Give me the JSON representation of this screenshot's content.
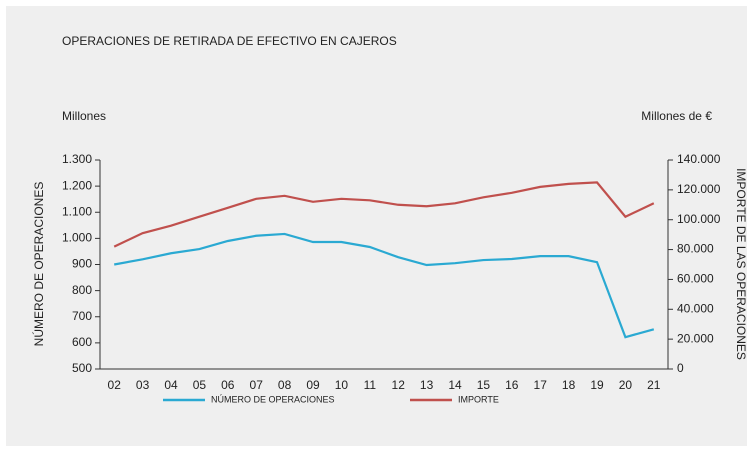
{
  "chart_data": {
    "type": "line",
    "title": "OPERACIONES DE RETIRADA DE EFECTIVO EN CAJEROS",
    "y_unit": "Millones",
    "y2_unit": "Millones de €",
    "ylabel": "NÚMERO DE OPERACIONES",
    "y2label": "IMPORTE DE LAS OPERACIONES",
    "categories": [
      "02",
      "03",
      "04",
      "05",
      "06",
      "07",
      "08",
      "09",
      "10",
      "11",
      "12",
      "13",
      "14",
      "15",
      "16",
      "17",
      "18",
      "19",
      "20",
      "21"
    ],
    "series": [
      {
        "name": "NÚMERO DE OPERACIONES",
        "color": "#2aa9d2",
        "axis": "y",
        "values": [
          900,
          920,
          943,
          959,
          990,
          1010,
          1017,
          986,
          986,
          967,
          928,
          898,
          905,
          917,
          921,
          932,
          932,
          909,
          622,
          652
        ]
      },
      {
        "name": "IMPORTE",
        "color": "#c0504d",
        "axis": "y2",
        "values": [
          82000,
          91000,
          96000,
          102000,
          108000,
          114000,
          116000,
          112000,
          114000,
          113000,
          110000,
          109000,
          111000,
          115000,
          118000,
          122000,
          124000,
          125000,
          102000,
          111000
        ]
      }
    ],
    "ylim": [
      500,
      1300
    ],
    "yticks": [
      500,
      600,
      700,
      800,
      900,
      {
        "value": 1000,
        "label": "1.000"
      },
      {
        "value": 1100,
        "label": "1.100"
      },
      {
        "value": 1200,
        "label": "1.200"
      },
      {
        "value": 1300,
        "label": "1.300"
      }
    ],
    "y2lim": [
      0,
      140000
    ],
    "y2ticks": [
      0,
      {
        "value": 20000,
        "label": "20.000"
      },
      {
        "value": 40000,
        "label": "40.000"
      },
      {
        "value": 60000,
        "label": "60.000"
      },
      {
        "value": 80000,
        "label": "80.000"
      },
      {
        "value": 100000,
        "label": "100.000"
      },
      {
        "value": 120000,
        "label": "120.000"
      },
      {
        "value": 140000,
        "label": "140.000"
      }
    ],
    "legend": "bottom"
  }
}
